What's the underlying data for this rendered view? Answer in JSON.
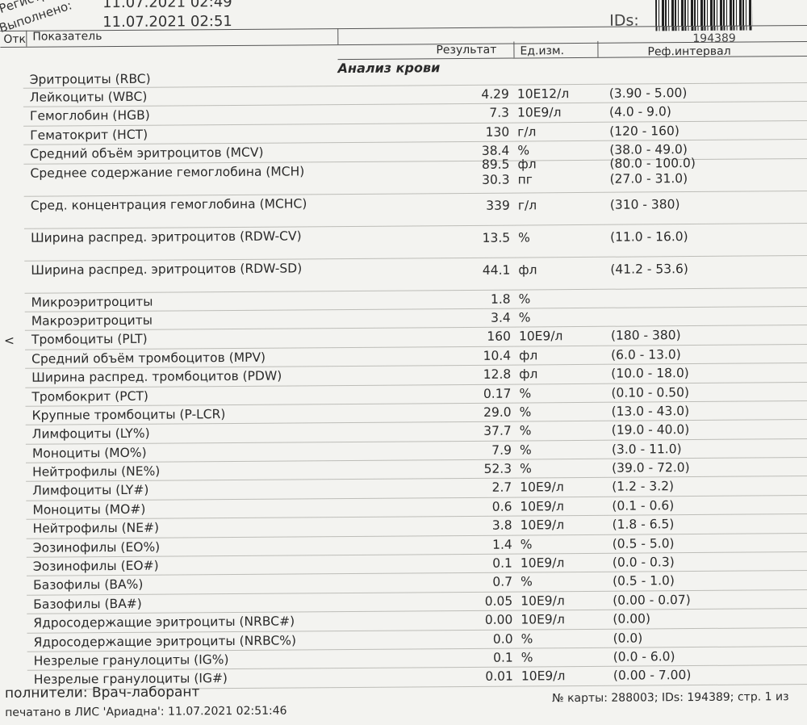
{
  "header": {
    "registration_label": "Регистрация:",
    "registration_value": "11.07.2021 02:49",
    "done_label": "Выполнено:",
    "done_value": "11.07.2021 02:51",
    "ids_label": "IDs:",
    "barcode_number": "194389"
  },
  "table": {
    "col_flag": "Отк",
    "col_name": "Показатель",
    "col_result": "Результат",
    "col_unit": "Ед.изм.",
    "col_ref": "Реф.интервал",
    "section": "Анализ крови"
  },
  "rows": [
    {
      "name": "Эритроциты (RBC)",
      "flag": "",
      "values": []
    },
    {
      "name": "Лейкоциты (WBC)",
      "flag": "",
      "values": [
        {
          "result": "4.29",
          "unit": "10E12/л",
          "ref": "(3.90 - 5.00)"
        }
      ]
    },
    {
      "name": "Гемоглобин (HGB)",
      "flag": "",
      "values": [
        {
          "result": "7.3",
          "unit": "10E9/л",
          "ref": "(4.0 - 9.0)"
        }
      ]
    },
    {
      "name": "Гематокрит (HCT)",
      "flag": "",
      "values": [
        {
          "result": "130",
          "unit": "г/л",
          "ref": "(120 - 160)"
        }
      ]
    },
    {
      "name": "Средний объём эритроцитов (MCV)",
      "flag": "",
      "values": [
        {
          "result": "38.4",
          "unit": "%",
          "ref": "(38.0 - 49.0)"
        }
      ]
    },
    {
      "name": "Среднее содержание гемоглобина (MCH)",
      "flag": "",
      "values": [
        {
          "result": "89.5",
          "unit": "фл",
          "ref": "(80.0 - 100.0)"
        },
        {
          "result": "30.3",
          "unit": "пг",
          "ref": "(27.0 - 31.0)"
        }
      ]
    },
    {
      "name": "Сред. концентрация гемоглобина (MCHC)",
      "flag": "",
      "values": [
        {
          "result": "339",
          "unit": "г/л",
          "ref": "(310 - 380)"
        }
      ]
    },
    {
      "name": "Ширина распред. эритроцитов (RDW-CV)",
      "flag": "",
      "values": [
        {
          "result": "13.5",
          "unit": "%",
          "ref": "(11.0 - 16.0)"
        }
      ]
    },
    {
      "name": "Ширина распред. эритроцитов (RDW-SD)",
      "flag": "",
      "values": [
        {
          "result": "44.1",
          "unit": "фл",
          "ref": "(41.2 - 53.6)"
        }
      ]
    },
    {
      "name": "Микроэритроциты",
      "flag": "",
      "values": [
        {
          "result": "1.8",
          "unit": "%",
          "ref": ""
        }
      ]
    },
    {
      "name": "Макроэритроциты",
      "flag": "",
      "values": [
        {
          "result": "3.4",
          "unit": "%",
          "ref": ""
        }
      ]
    },
    {
      "name": "Тромбоциты (PLT)",
      "flag": "<",
      "values": [
        {
          "result": "160",
          "unit": "10E9/л",
          "ref": "(180 - 380)"
        }
      ]
    },
    {
      "name": "Средний объём тромбоцитов (MPV)",
      "flag": "",
      "values": [
        {
          "result": "10.4",
          "unit": "фл",
          "ref": "(6.0 - 13.0)"
        }
      ]
    },
    {
      "name": "Ширина распред. тромбоцитов (PDW)",
      "flag": "",
      "values": [
        {
          "result": "12.8",
          "unit": "фл",
          "ref": "(10.0 - 18.0)"
        }
      ]
    },
    {
      "name": "Тромбокрит (PCT)",
      "flag": "",
      "values": [
        {
          "result": "0.17",
          "unit": "%",
          "ref": "(0.10 - 0.50)"
        }
      ]
    },
    {
      "name": "Крупные тромбоциты (P-LCR)",
      "flag": "",
      "values": [
        {
          "result": "29.0",
          "unit": "%",
          "ref": "(13.0 - 43.0)"
        }
      ]
    },
    {
      "name": "Лимфоциты (LY%)",
      "flag": "",
      "values": [
        {
          "result": "37.7",
          "unit": "%",
          "ref": "(19.0 - 40.0)"
        }
      ]
    },
    {
      "name": "Моноциты (MO%)",
      "flag": "",
      "values": [
        {
          "result": "7.9",
          "unit": "%",
          "ref": "(3.0 - 11.0)"
        }
      ]
    },
    {
      "name": "Нейтрофилы (NE%)",
      "flag": "",
      "values": [
        {
          "result": "52.3",
          "unit": "%",
          "ref": "(39.0 - 72.0)"
        }
      ]
    },
    {
      "name": "Лимфоциты (LY#)",
      "flag": "",
      "values": [
        {
          "result": "2.7",
          "unit": "10E9/л",
          "ref": "(1.2 - 3.2)"
        }
      ]
    },
    {
      "name": "Моноциты (MO#)",
      "flag": "",
      "values": [
        {
          "result": "0.6",
          "unit": "10E9/л",
          "ref": "(0.1 - 0.6)"
        }
      ]
    },
    {
      "name": "Нейтрофилы (NE#)",
      "flag": "",
      "values": [
        {
          "result": "3.8",
          "unit": "10E9/л",
          "ref": "(1.8 - 6.5)"
        }
      ]
    },
    {
      "name": "Эозинофилы (EO%)",
      "flag": "",
      "values": [
        {
          "result": "1.4",
          "unit": "%",
          "ref": "(0.5 - 5.0)"
        }
      ]
    },
    {
      "name": "Эозинофилы (EO#)",
      "flag": "",
      "values": [
        {
          "result": "0.1",
          "unit": "10E9/л",
          "ref": "(0.0 - 0.3)"
        }
      ]
    },
    {
      "name": "Базофилы (BA%)",
      "flag": "",
      "values": [
        {
          "result": "0.7",
          "unit": "%",
          "ref": "(0.5 - 1.0)"
        }
      ]
    },
    {
      "name": "Базофилы (BA#)",
      "flag": "",
      "values": [
        {
          "result": "0.05",
          "unit": "10E9/л",
          "ref": "(0.00 - 0.07)"
        }
      ]
    },
    {
      "name": "Ядросодержащие эритроциты (NRBC#)",
      "flag": "",
      "values": [
        {
          "result": "0.00",
          "unit": "10E9/л",
          "ref": "(0.00)"
        }
      ]
    },
    {
      "name": "Ядросодержащие эритроциты (NRBC%)",
      "flag": "",
      "values": [
        {
          "result": "0.0",
          "unit": "%",
          "ref": "(0.0)"
        }
      ]
    },
    {
      "name": "Незрелые гранулоциты (IG%)",
      "flag": "",
      "values": [
        {
          "result": "0.1",
          "unit": "%",
          "ref": "(0.0 - 6.0)"
        }
      ]
    },
    {
      "name": "Незрелые гранулоциты (IG#)",
      "flag": "",
      "values": [
        {
          "result": "0.01",
          "unit": "10E9/л",
          "ref": "(0.00 - 7.00)"
        }
      ]
    }
  ],
  "footer": {
    "performers": "полнители:  Врач-лаборант",
    "printed": "печатано в ЛИС 'Ариадна': 11.07.2021 02:51:46",
    "card": "№ карты: 288003;  IDs: 194389;  стр. 1 из"
  }
}
